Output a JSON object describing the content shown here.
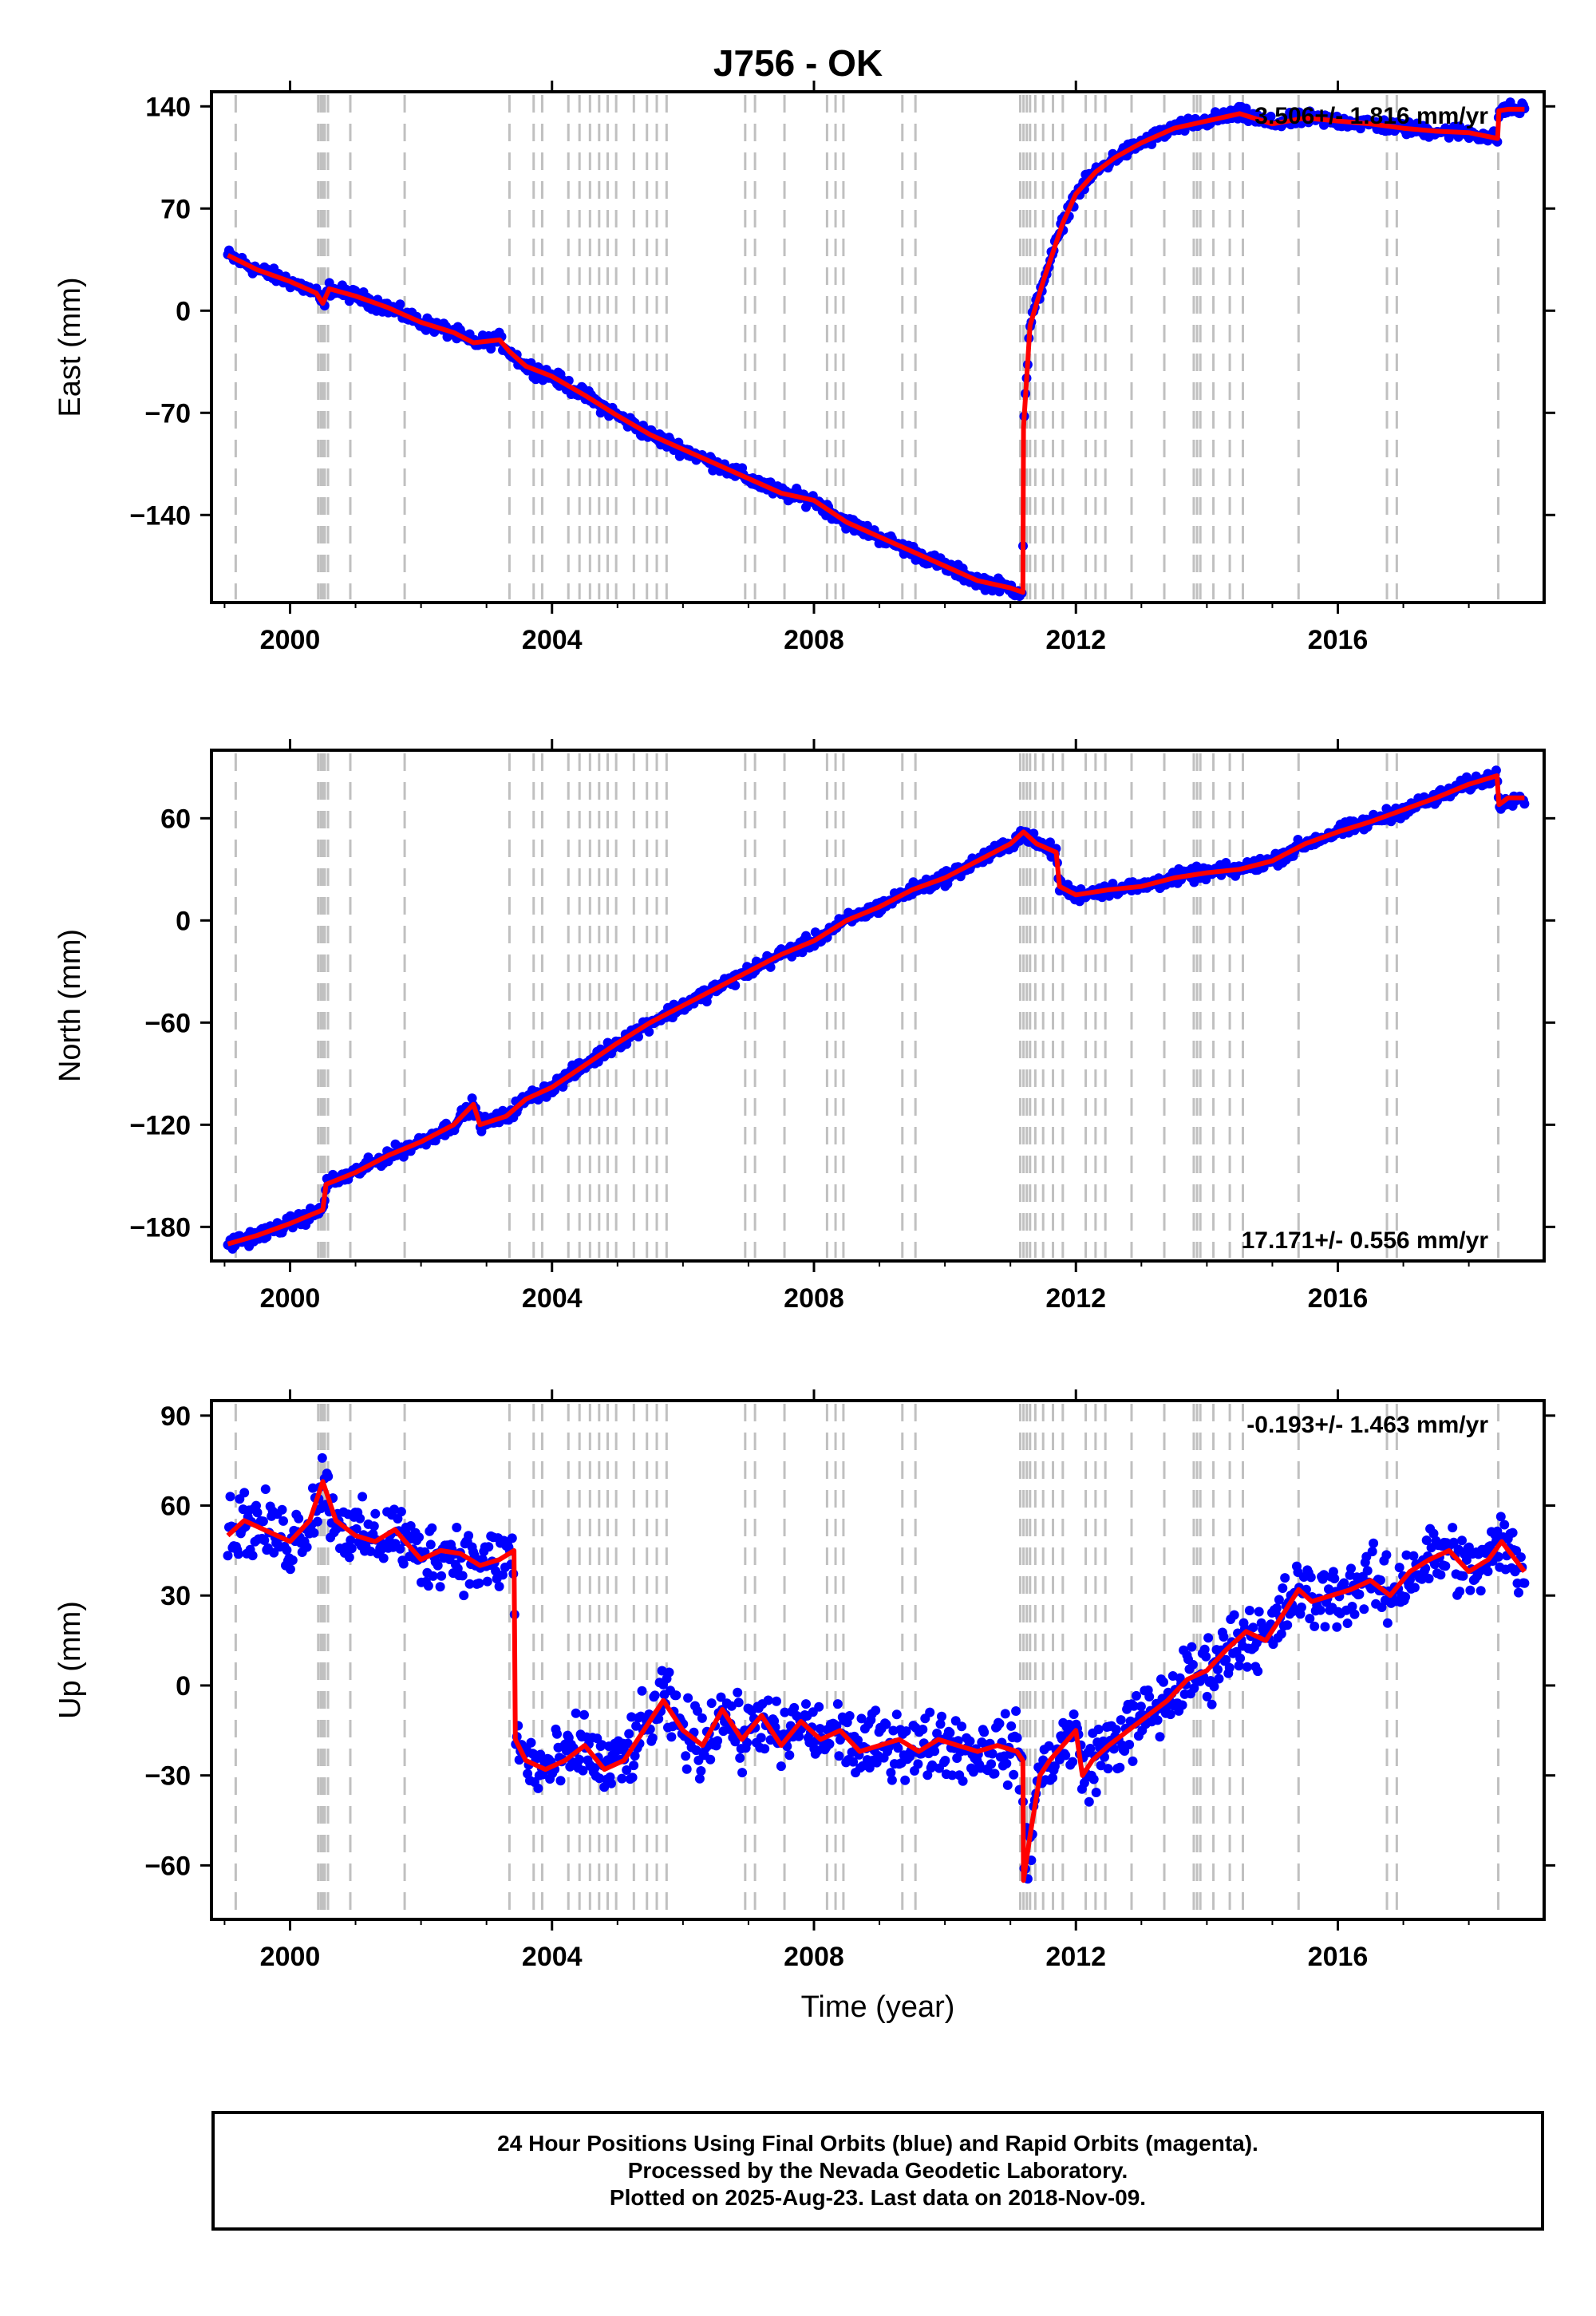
{
  "title": "J756 - OK",
  "colors": {
    "final_orbits": "#0000ff",
    "model": "#ff0000",
    "event_lines": "#c0c0c0"
  },
  "footer": {
    "line1": "24 Hour Positions Using Final Orbits (blue) and Rapid Orbits (magenta).",
    "line2": "Processed by the Nevada Geodetic Laboratory.",
    "line3": "Plotted on 2025-Aug-23. Last data on 2018-Nov-09."
  },
  "event_lines": [
    1999.17,
    2000.43,
    2000.47,
    2000.5,
    2000.53,
    2000.58,
    2000.92,
    2001.75,
    2003.35,
    2003.72,
    2003.85,
    2004.25,
    2004.42,
    2004.58,
    2004.72,
    2004.85,
    2004.98,
    2005.25,
    2005.45,
    2005.6,
    2005.75,
    2006.95,
    2007.1,
    2007.55,
    2008.2,
    2008.33,
    2008.45,
    2009.35,
    2009.55,
    2011.15,
    2011.2,
    2011.25,
    2011.3,
    2011.38,
    2011.5,
    2011.65,
    2011.8,
    2012.15,
    2012.3,
    2012.45,
    2012.85,
    2013.35,
    2013.8,
    2013.85,
    2013.9,
    2014.1,
    2014.35,
    2014.55,
    2015.4,
    2016.75,
    2016.9,
    2018.45
  ],
  "chart_data": [
    {
      "type": "scatter",
      "panel": "east",
      "ylabel": "East (mm)",
      "xlabel": "",
      "rate_label": "3.506+/- 1.816 mm/yr",
      "xlim": [
        1998.8,
        2019.15
      ],
      "ylim": [
        -200,
        150
      ],
      "xticks": [
        2000,
        2004,
        2008,
        2012,
        2016
      ],
      "yticks": [
        140,
        70,
        0,
        -70,
        -140
      ],
      "series": [
        {
          "x": [
            1999.05,
            1999.5,
            2000.0,
            2000.4,
            2000.5,
            2000.6,
            2001.0,
            2001.5,
            2002.0,
            2002.5,
            2002.8,
            2003.2,
            2003.35,
            2003.6,
            2004.0,
            2004.5,
            2005.0,
            2005.5,
            2006.0,
            2006.5,
            2007.0,
            2007.5,
            2007.8,
            2008.0,
            2008.5,
            2009.0,
            2009.5,
            2010.0,
            2010.5,
            2011.0,
            2011.19,
            2011.2,
            2011.3,
            2011.5,
            2011.8,
            2012.0,
            2012.3,
            2012.6,
            2013.0,
            2013.5,
            2014.0,
            2014.5,
            2015.0,
            2015.5,
            2016.0,
            2016.5,
            2017.0,
            2017.5,
            2018.0,
            2018.44,
            2018.46,
            2018.6,
            2018.85
          ],
          "y": [
            38,
            28,
            20,
            12,
            5,
            15,
            10,
            2,
            -8,
            -15,
            -22,
            -20,
            -28,
            -38,
            -45,
            -58,
            -72,
            -85,
            -95,
            -105,
            -115,
            -125,
            -128,
            -130,
            -145,
            -155,
            -165,
            -175,
            -185,
            -190,
            -193,
            -80,
            -10,
            20,
            60,
            80,
            95,
            105,
            115,
            125,
            130,
            135,
            128,
            132,
            130,
            128,
            125,
            123,
            122,
            118,
            137,
            138,
            138
          ]
        }
      ]
    },
    {
      "type": "scatter",
      "panel": "north",
      "ylabel": "North (mm)",
      "xlabel": "",
      "rate_label": "17.171+/- 0.556 mm/yr",
      "xlim": [
        1998.8,
        2019.15
      ],
      "ylim": [
        -200,
        100
      ],
      "xticks": [
        2000,
        2004,
        2008,
        2012,
        2016
      ],
      "yticks": [
        60,
        0,
        -60,
        -120,
        -180
      ],
      "series": [
        {
          "x": [
            1999.05,
            1999.5,
            2000.0,
            2000.5,
            2000.55,
            2001.0,
            2001.5,
            2002.0,
            2002.5,
            2002.8,
            2002.9,
            2003.3,
            2003.6,
            2004.0,
            2004.5,
            2005.0,
            2005.5,
            2006.0,
            2006.5,
            2007.0,
            2007.5,
            2008.0,
            2008.5,
            2009.0,
            2009.5,
            2010.0,
            2010.5,
            2011.0,
            2011.2,
            2011.4,
            2011.7,
            2011.75,
            2012.0,
            2012.5,
            2013.0,
            2013.5,
            2014.0,
            2014.5,
            2015.0,
            2015.5,
            2016.0,
            2016.5,
            2017.0,
            2017.5,
            2018.0,
            2018.43,
            2018.46,
            2018.6,
            2018.85
          ],
          "y": [
            -190,
            -185,
            -178,
            -170,
            -155,
            -148,
            -138,
            -130,
            -120,
            -108,
            -120,
            -115,
            -105,
            -98,
            -85,
            -72,
            -60,
            -50,
            -40,
            -30,
            -20,
            -12,
            0,
            8,
            18,
            25,
            35,
            45,
            52,
            45,
            40,
            20,
            15,
            18,
            20,
            25,
            28,
            30,
            35,
            45,
            52,
            58,
            65,
            72,
            80,
            85,
            68,
            72,
            72
          ]
        }
      ]
    },
    {
      "type": "scatter",
      "panel": "up",
      "ylabel": "Up (mm)",
      "xlabel": "Time (year)",
      "rate_label": "-0.193+/- 1.463 mm/yr",
      "xlim": [
        1998.8,
        2019.15
      ],
      "ylim": [
        -78,
        95
      ],
      "xticks": [
        2000,
        2004,
        2008,
        2012,
        2016
      ],
      "yticks": [
        90,
        60,
        30,
        0,
        -30,
        -60
      ],
      "series": [
        {
          "x": [
            1999.05,
            1999.3,
            1999.6,
            2000.0,
            2000.3,
            2000.5,
            2000.7,
            2001.0,
            2001.3,
            2001.6,
            2002.0,
            2002.3,
            2002.6,
            2002.9,
            2003.2,
            2003.42,
            2003.44,
            2003.6,
            2003.9,
            2004.2,
            2004.5,
            2004.8,
            2005.1,
            2005.4,
            2005.7,
            2006.0,
            2006.3,
            2006.6,
            2006.9,
            2007.2,
            2007.5,
            2007.8,
            2008.1,
            2008.4,
            2008.7,
            2009.0,
            2009.3,
            2009.6,
            2009.9,
            2010.2,
            2010.5,
            2010.8,
            2011.1,
            2011.19,
            2011.2,
            2011.3,
            2011.45,
            2011.6,
            2011.8,
            2012.0,
            2012.1,
            2012.25,
            2012.5,
            2012.8,
            2013.1,
            2013.4,
            2013.7,
            2014.0,
            2014.3,
            2014.6,
            2014.9,
            2015.2,
            2015.4,
            2015.6,
            2015.9,
            2016.2,
            2016.5,
            2016.8,
            2017.1,
            2017.4,
            2017.7,
            2018.0,
            2018.3,
            2018.5,
            2018.85
          ],
          "y": [
            50,
            55,
            52,
            48,
            55,
            68,
            55,
            50,
            48,
            52,
            42,
            45,
            44,
            40,
            42,
            45,
            -18,
            -25,
            -28,
            -25,
            -20,
            -28,
            -25,
            -15,
            -5,
            -15,
            -20,
            -8,
            -18,
            -10,
            -20,
            -12,
            -18,
            -15,
            -22,
            -20,
            -18,
            -22,
            -18,
            -20,
            -22,
            -20,
            -22,
            -25,
            -65,
            -50,
            -30,
            -25,
            -20,
            -15,
            -30,
            -25,
            -20,
            -15,
            -10,
            -5,
            2,
            5,
            12,
            18,
            15,
            25,
            32,
            28,
            30,
            32,
            35,
            30,
            38,
            42,
            45,
            38,
            42,
            48,
            38
          ]
        }
      ]
    }
  ]
}
